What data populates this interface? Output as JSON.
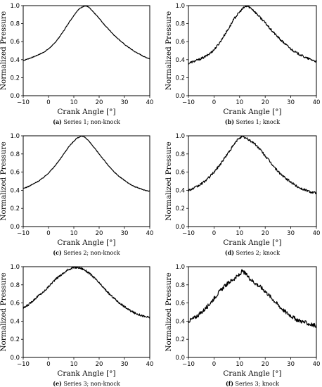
{
  "chart_data": [
    {
      "type": "line",
      "caption_tag": "(a)",
      "caption_text": "Series 1; non-knock",
      "xlabel": "Crank Angle [°]",
      "ylabel": "Normalized Pressure",
      "xlim": [
        -10,
        40
      ],
      "ylim": [
        0,
        1.0
      ],
      "xticks": [
        "−10",
        "0",
        "10",
        "20",
        "30",
        "40"
      ],
      "yticks": [
        "0.0",
        "0.2",
        "0.4",
        "0.6",
        "0.8",
        "1.0"
      ],
      "grid": false,
      "series": [
        {
          "x": [
            -10,
            -8,
            -6,
            -4,
            -2,
            0,
            2,
            4,
            6,
            8,
            10,
            11,
            12,
            13,
            14,
            15,
            16,
            18,
            20,
            22,
            24,
            26,
            28,
            30,
            32,
            34,
            36,
            38,
            40
          ],
          "y": [
            0.39,
            0.41,
            0.43,
            0.455,
            0.48,
            0.52,
            0.57,
            0.64,
            0.72,
            0.81,
            0.89,
            0.93,
            0.96,
            0.98,
            0.995,
            0.995,
            0.98,
            0.92,
            0.86,
            0.79,
            0.73,
            0.67,
            0.62,
            0.57,
            0.53,
            0.49,
            0.46,
            0.43,
            0.41
          ],
          "noise": 0.004
        }
      ]
    },
    {
      "type": "line",
      "caption_tag": "(b)",
      "caption_text": "Series 1; knock",
      "xlabel": "Crank Angle [°]",
      "ylabel": "Normalized Pressure",
      "xlim": [
        -10,
        40
      ],
      "ylim": [
        0,
        1.0
      ],
      "xticks": [
        "−10",
        "0",
        "10",
        "20",
        "30",
        "40"
      ],
      "yticks": [
        "0.0",
        "0.2",
        "0.4",
        "0.6",
        "0.8",
        "1.0"
      ],
      "grid": false,
      "series": [
        {
          "x": [
            -10,
            -8,
            -6,
            -4,
            -2,
            0,
            2,
            4,
            6,
            8,
            10,
            11,
            12,
            13,
            14,
            15,
            16,
            18,
            20,
            22,
            24,
            26,
            28,
            30,
            32,
            34,
            36,
            38,
            40
          ],
          "y": [
            0.36,
            0.38,
            0.4,
            0.425,
            0.46,
            0.51,
            0.58,
            0.67,
            0.76,
            0.86,
            0.93,
            0.96,
            0.985,
            0.995,
            0.98,
            0.96,
            0.93,
            0.87,
            0.81,
            0.74,
            0.68,
            0.62,
            0.57,
            0.52,
            0.48,
            0.45,
            0.42,
            0.4,
            0.38
          ],
          "noise": 0.012
        }
      ]
    },
    {
      "type": "line",
      "caption_tag": "(c)",
      "caption_text": "Series 2; non-knock",
      "xlabel": "Crank Angle [°]",
      "ylabel": "Normalized Pressure",
      "xlim": [
        -10,
        40
      ],
      "ylim": [
        0,
        1.0
      ],
      "xticks": [
        "−10",
        "0",
        "10",
        "20",
        "30",
        "40"
      ],
      "yticks": [
        "0.0",
        "0.2",
        "0.4",
        "0.6",
        "0.8",
        "1.0"
      ],
      "grid": false,
      "series": [
        {
          "x": [
            -10,
            -8,
            -6,
            -4,
            -2,
            0,
            2,
            4,
            6,
            8,
            10,
            11,
            12,
            13,
            14,
            15,
            16,
            18,
            20,
            22,
            24,
            26,
            28,
            30,
            32,
            34,
            36,
            38,
            40
          ],
          "y": [
            0.42,
            0.44,
            0.47,
            0.5,
            0.54,
            0.59,
            0.65,
            0.72,
            0.8,
            0.88,
            0.94,
            0.97,
            0.985,
            0.995,
            0.99,
            0.97,
            0.94,
            0.87,
            0.8,
            0.73,
            0.66,
            0.6,
            0.55,
            0.51,
            0.47,
            0.44,
            0.42,
            0.4,
            0.39
          ],
          "noise": 0.004
        }
      ]
    },
    {
      "type": "line",
      "caption_tag": "(d)",
      "caption_text": "Series 2; knock",
      "xlabel": "Crank Angle [°]",
      "ylabel": "Normalized Pressure",
      "xlim": [
        -10,
        40
      ],
      "ylim": [
        0,
        1.0
      ],
      "xticks": [
        "−10",
        "0",
        "10",
        "20",
        "30",
        "40"
      ],
      "yticks": [
        "0.0",
        "0.2",
        "0.4",
        "0.6",
        "0.8",
        "1.0"
      ],
      "grid": false,
      "series": [
        {
          "x": [
            -10,
            -8,
            -6,
            -4,
            -2,
            0,
            2,
            4,
            6,
            8,
            9,
            10,
            11,
            12,
            13,
            14,
            15,
            16,
            18,
            20,
            22,
            24,
            26,
            28,
            30,
            32,
            34,
            36,
            38,
            40
          ],
          "y": [
            0.4,
            0.42,
            0.45,
            0.49,
            0.54,
            0.6,
            0.67,
            0.75,
            0.83,
            0.91,
            0.95,
            0.98,
            0.99,
            0.98,
            0.965,
            0.95,
            0.93,
            0.91,
            0.85,
            0.78,
            0.71,
            0.64,
            0.58,
            0.53,
            0.49,
            0.45,
            0.42,
            0.4,
            0.38,
            0.37
          ],
          "noise": 0.013
        }
      ]
    },
    {
      "type": "line",
      "caption_tag": "(e)",
      "caption_text": "Series 3; non-knock",
      "xlabel": "Crank Angle [°]",
      "ylabel": "Normalized Pressure",
      "xlim": [
        -10,
        40
      ],
      "ylim": [
        0,
        1.0
      ],
      "xticks": [
        "−10",
        "0",
        "10",
        "20",
        "30",
        "40"
      ],
      "yticks": [
        "0.0",
        "0.2",
        "0.4",
        "0.6",
        "0.8",
        "1.0"
      ],
      "grid": false,
      "series": [
        {
          "x": [
            -10,
            -8,
            -6,
            -4,
            -2,
            0,
            2,
            4,
            6,
            8,
            10,
            12,
            14,
            16,
            18,
            20,
            22,
            24,
            26,
            28,
            30,
            32,
            34,
            36,
            38,
            40
          ],
          "y": [
            0.54,
            0.58,
            0.63,
            0.68,
            0.72,
            0.78,
            0.84,
            0.89,
            0.93,
            0.97,
            0.99,
            0.99,
            0.97,
            0.93,
            0.88,
            0.82,
            0.76,
            0.7,
            0.65,
            0.6,
            0.56,
            0.52,
            0.49,
            0.47,
            0.45,
            0.44
          ],
          "noise": 0.011
        }
      ]
    },
    {
      "type": "line",
      "caption_tag": "(f)",
      "caption_text": "Series 3; knock",
      "xlabel": "Crank Angle [°]",
      "ylabel": "Normalized Pressure",
      "xlim": [
        -10,
        40
      ],
      "ylim": [
        0,
        1.0
      ],
      "xticks": [
        "−10",
        "0",
        "10",
        "20",
        "30",
        "40"
      ],
      "yticks": [
        "0.0",
        "0.2",
        "0.4",
        "0.6",
        "0.8",
        "1.0"
      ],
      "grid": false,
      "series": [
        {
          "x": [
            -10,
            -8,
            -6,
            -4,
            -2,
            0,
            2,
            4,
            6,
            8,
            9,
            10,
            11,
            12,
            13,
            14,
            16,
            18,
            20,
            22,
            24,
            26,
            28,
            30,
            32,
            34,
            36,
            38,
            40
          ],
          "y": [
            0.4,
            0.43,
            0.47,
            0.52,
            0.58,
            0.65,
            0.72,
            0.78,
            0.83,
            0.87,
            0.89,
            0.91,
            0.95,
            0.93,
            0.9,
            0.87,
            0.82,
            0.78,
            0.73,
            0.67,
            0.61,
            0.55,
            0.5,
            0.46,
            0.42,
            0.4,
            0.38,
            0.36,
            0.35
          ],
          "noise": 0.022
        }
      ]
    }
  ]
}
